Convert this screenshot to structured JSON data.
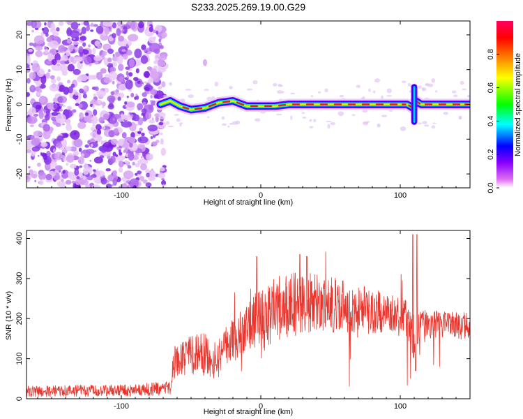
{
  "figure_title": "S233.2025.269.19.00.G29",
  "chart_data": [
    {
      "type": "heatmap",
      "xlabel": "Height of straight line (km)",
      "ylabel": "Frequency (Hz)",
      "xlim": [
        -168,
        150
      ],
      "ylim": [
        -24,
        24
      ],
      "x_ticks": [
        -100,
        0,
        100
      ],
      "y_ticks": [
        -20,
        -10,
        0,
        10,
        20
      ],
      "colorbar": {
        "label": "Normalized spectral amplitude",
        "range": [
          0.0,
          1.0
        ],
        "ticks": [
          0.0,
          0.2,
          0.4,
          0.6,
          0.8
        ],
        "colors": [
          "#ffffff",
          "#e070f0",
          "#8a00ff",
          "#0000ff",
          "#00ffff",
          "#00ff00",
          "#ffff00",
          "#ff8000",
          "#ff0000",
          "#ff0060"
        ]
      },
      "noise_region": {
        "x_range": [
          -168,
          -72
        ],
        "freq_range": [
          -24,
          24
        ],
        "amplitude": 0.25
      },
      "ridge": [
        {
          "x": -72,
          "freq": 0.0
        },
        {
          "x": -65,
          "freq": 1.0
        },
        {
          "x": -58,
          "freq": -0.5
        },
        {
          "x": -50,
          "freq": -1.5
        },
        {
          "x": -40,
          "freq": -1.0
        },
        {
          "x": -30,
          "freq": 0.5
        },
        {
          "x": -20,
          "freq": 1.0
        },
        {
          "x": -10,
          "freq": -0.5
        },
        {
          "x": 0,
          "freq": -0.5
        },
        {
          "x": 10,
          "freq": -0.5
        },
        {
          "x": 20,
          "freq": 0.0
        },
        {
          "x": 30,
          "freq": 0.0
        },
        {
          "x": 40,
          "freq": 0.0
        },
        {
          "x": 50,
          "freq": 0.0
        },
        {
          "x": 60,
          "freq": 0.0
        },
        {
          "x": 70,
          "freq": 0.0
        },
        {
          "x": 80,
          "freq": 0.0
        },
        {
          "x": 90,
          "freq": 0.0
        },
        {
          "x": 100,
          "freq": 0.0
        },
        {
          "x": 105,
          "freq": 0.0
        },
        {
          "x": 109,
          "freq": -1.0
        },
        {
          "x": 111,
          "freq": 1.0
        },
        {
          "x": 115,
          "freq": 0.0
        },
        {
          "x": 125,
          "freq": 0.0
        },
        {
          "x": 135,
          "freq": 0.0
        },
        {
          "x": 145,
          "freq": 0.0
        },
        {
          "x": 150,
          "freq": 0.0
        }
      ],
      "isolated_blob": {
        "x": -40,
        "freq": 12
      }
    },
    {
      "type": "line",
      "xlabel": "Height of straight line (km)",
      "ylabel": "SNR (10 * v/v)",
      "xlim": [
        -168,
        150
      ],
      "ylim": [
        0,
        420
      ],
      "x_ticks": [
        -100,
        0,
        100
      ],
      "y_ticks": [
        0,
        100,
        200,
        300,
        400
      ],
      "line_color": "#e8362e",
      "envelope": [
        {
          "x": -168,
          "mean": 18,
          "spread": 14
        },
        {
          "x": -130,
          "mean": 20,
          "spread": 15
        },
        {
          "x": -90,
          "mean": 22,
          "spread": 16
        },
        {
          "x": -65,
          "mean": 26,
          "spread": 18
        },
        {
          "x": -62,
          "mean": 90,
          "spread": 45
        },
        {
          "x": -50,
          "mean": 110,
          "spread": 50
        },
        {
          "x": -40,
          "mean": 110,
          "spread": 55
        },
        {
          "x": -32,
          "mean": 90,
          "spread": 50
        },
        {
          "x": -25,
          "mean": 130,
          "spread": 50
        },
        {
          "x": -12,
          "mean": 170,
          "spread": 60
        },
        {
          "x": 0,
          "mean": 200,
          "spread": 80
        },
        {
          "x": 15,
          "mean": 230,
          "spread": 80
        },
        {
          "x": 30,
          "mean": 240,
          "spread": 80
        },
        {
          "x": 50,
          "mean": 235,
          "spread": 70
        },
        {
          "x": 70,
          "mean": 225,
          "spread": 60
        },
        {
          "x": 90,
          "mean": 210,
          "spread": 55
        },
        {
          "x": 105,
          "mean": 200,
          "spread": 45
        },
        {
          "x": 110,
          "mean": 150,
          "spread": 60
        },
        {
          "x": 115,
          "mean": 190,
          "spread": 40
        },
        {
          "x": 130,
          "mean": 185,
          "spread": 35
        },
        {
          "x": 150,
          "mean": 180,
          "spread": 35
        }
      ],
      "spikes": [
        {
          "x": -3,
          "y": 355
        },
        {
          "x": 28,
          "y": 360
        },
        {
          "x": 33,
          "y": 355
        },
        {
          "x": 109,
          "y": 410
        },
        {
          "x": 112,
          "y": 410
        },
        {
          "x": 111,
          "y": 70
        }
      ]
    }
  ]
}
